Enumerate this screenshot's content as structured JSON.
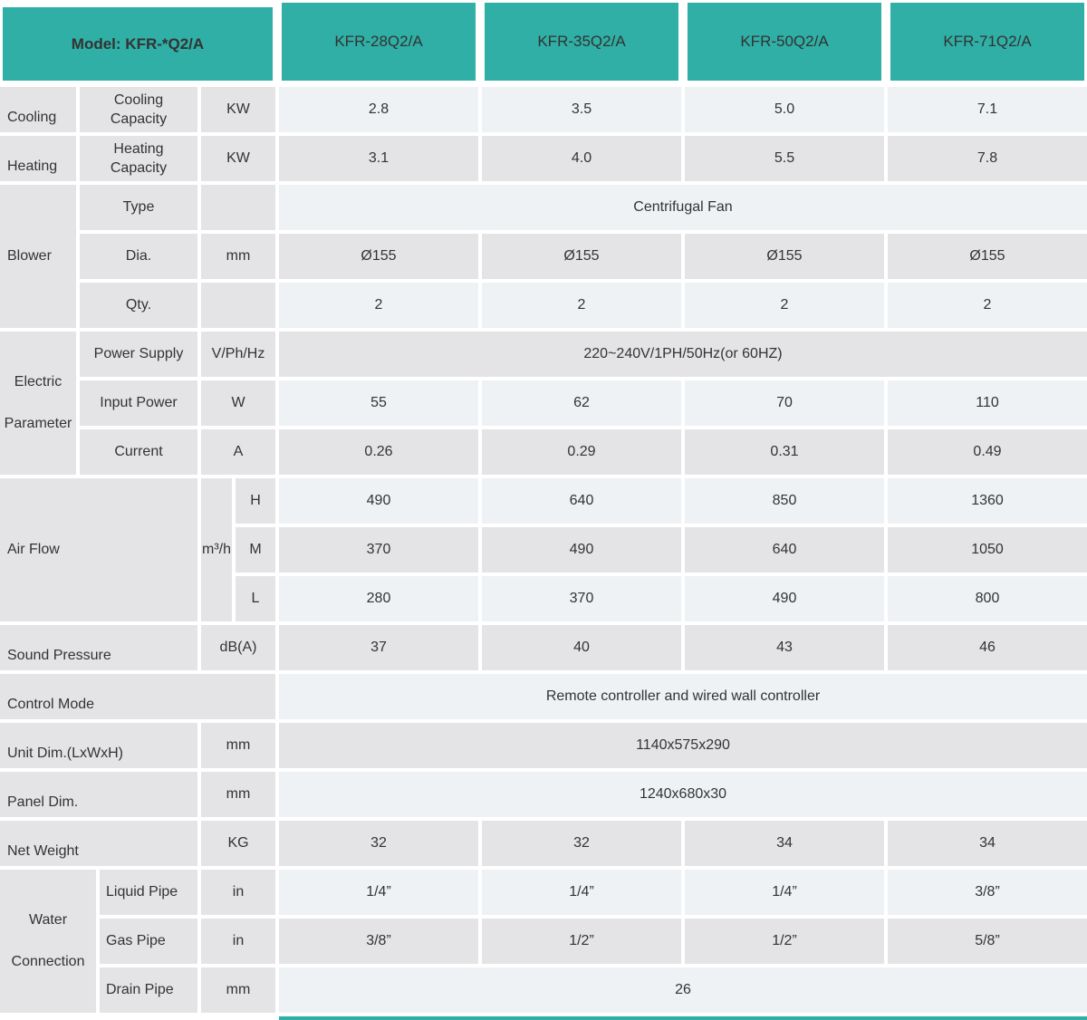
{
  "colors": {
    "teal": "#2fafa5",
    "row_light": "#eef2f5",
    "row_gray": "#e4e4e7",
    "gap": "#ffffff",
    "text": "#333333"
  },
  "header": {
    "model": "Model: KFR-*Q2/A",
    "columns": [
      "KFR-28Q2/A",
      "KFR-35Q2/A",
      "KFR-50Q2/A",
      "KFR-71Q2/A"
    ]
  },
  "sections": {
    "cooling": {
      "group": "Cooling",
      "label": "Cooling Capacity",
      "unit": "KW",
      "values": [
        "2.8",
        "3.5",
        "5.0",
        "7.1"
      ]
    },
    "heating": {
      "group": "Heating",
      "label": "Heating Capacity",
      "unit": "KW",
      "values": [
        "3.1",
        "4.0",
        "5.5",
        "7.8"
      ]
    },
    "blower": {
      "group": "Blower",
      "type": {
        "label": "Type",
        "value": "Centrifugal Fan"
      },
      "dia": {
        "label": "Dia.",
        "unit": "mm",
        "values": [
          "Ø155",
          "Ø155",
          "Ø155",
          "Ø155"
        ]
      },
      "qty": {
        "label": "Qty.",
        "values": [
          "2",
          "2",
          "2",
          "2"
        ]
      }
    },
    "electric": {
      "group_line1": "Electric",
      "group_line2": "Parameter",
      "power_supply": {
        "label": "Power Supply",
        "unit": "V/Ph/Hz",
        "value": "220~240V/1PH/50Hz(or 60HZ)"
      },
      "input_power": {
        "label": "Input Power",
        "unit": "W",
        "values": [
          "55",
          "62",
          "70",
          "110"
        ]
      },
      "current": {
        "label": "Current",
        "unit": "A",
        "values": [
          "0.26",
          "0.29",
          "0.31",
          "0.49"
        ]
      }
    },
    "airflow": {
      "group": "Air Flow",
      "unit": "m³/h",
      "high": {
        "label": "H",
        "values": [
          "490",
          "640",
          "850",
          "1360"
        ]
      },
      "medium": {
        "label": "M",
        "values": [
          "370",
          "490",
          "640",
          "1050"
        ]
      },
      "low": {
        "label": "L",
        "values": [
          "280",
          "370",
          "490",
          "800"
        ]
      }
    },
    "sound": {
      "label": "Sound Pressure",
      "unit": "dB(A)",
      "values": [
        "37",
        "40",
        "43",
        "46"
      ]
    },
    "control": {
      "label": "Control Mode",
      "value": "Remote controller and wired wall controller"
    },
    "unit_dim": {
      "label": "Unit Dim.(LxWxH)",
      "unit": "mm",
      "value": "1140x575x290"
    },
    "panel_dim": {
      "label": "Panel Dim.",
      "unit": "mm",
      "value": "1240x680x30"
    },
    "net_weight": {
      "label": "Net Weight",
      "unit": "KG",
      "values": [
        "32",
        "32",
        "34",
        "34"
      ]
    },
    "water": {
      "group_line1": "Water",
      "group_line2": "Connection",
      "liquid": {
        "label": "Liquid Pipe",
        "unit": "in",
        "values": [
          "1/4”",
          "1/4”",
          "1/4”",
          "3/8”"
        ]
      },
      "gas": {
        "label": "Gas Pipe",
        "unit": "in",
        "values": [
          "3/8”",
          "1/2”",
          "1/2”",
          "5/8”"
        ]
      },
      "drain": {
        "label": "Drain Pipe",
        "unit": "mm",
        "value": "26"
      }
    }
  }
}
